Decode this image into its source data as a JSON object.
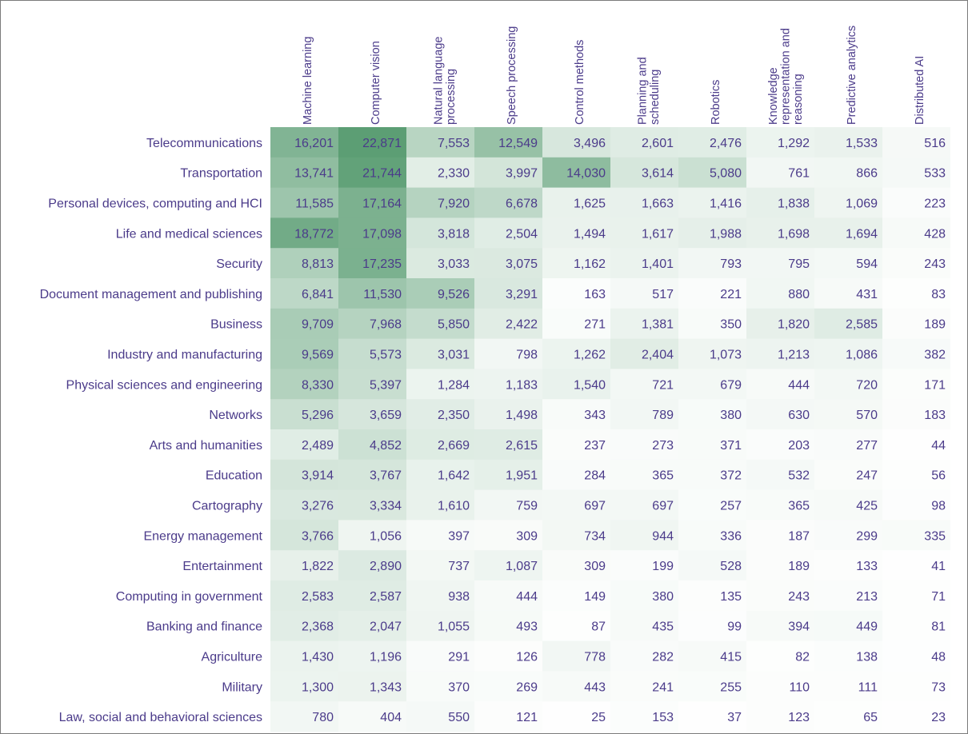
{
  "chart_data": {
    "type": "heatmap",
    "title": "",
    "xlabel": "",
    "ylabel": "",
    "columns": [
      [
        "Machine learning"
      ],
      [
        "Computer vision"
      ],
      [
        "Natural language",
        "processing"
      ],
      [
        "Speech processing"
      ],
      [
        "Control methods"
      ],
      [
        "Planning and",
        "scheduling"
      ],
      [
        "Robotics"
      ],
      [
        "Knowledge",
        "representation and",
        "reasoning"
      ],
      [
        "Predictive analytics"
      ],
      [
        "Distributed AI"
      ]
    ],
    "rows": [
      "Telecommunications",
      "Transportation",
      "Personal devices, computing and HCI",
      "Life and medical sciences",
      "Security",
      "Document management and publishing",
      "Business",
      "Industry and manufacturing",
      "Physical sciences and engineering",
      "Networks",
      "Arts and humanities",
      "Education",
      "Cartography",
      "Energy management",
      "Entertainment",
      "Computing in government",
      "Banking and finance",
      "Agriculture",
      "Military",
      "Law, social and behavioral sciences"
    ],
    "values": [
      [
        16201,
        22871,
        7553,
        12549,
        3496,
        2601,
        2476,
        1292,
        1533,
        516
      ],
      [
        13741,
        21744,
        2330,
        3997,
        14030,
        3614,
        5080,
        761,
        866,
        533
      ],
      [
        11585,
        17164,
        7920,
        6678,
        1625,
        1663,
        1416,
        1838,
        1069,
        223
      ],
      [
        18772,
        17098,
        3818,
        2504,
        1494,
        1617,
        1988,
        1698,
        1694,
        428
      ],
      [
        8813,
        17235,
        3033,
        3075,
        1162,
        1401,
        793,
        795,
        594,
        243
      ],
      [
        6841,
        11530,
        9526,
        3291,
        163,
        517,
        221,
        880,
        431,
        83
      ],
      [
        9709,
        7968,
        5850,
        2422,
        271,
        1381,
        350,
        1820,
        2585,
        189
      ],
      [
        9569,
        5573,
        3031,
        798,
        1262,
        2404,
        1073,
        1213,
        1086,
        382
      ],
      [
        8330,
        5397,
        1284,
        1183,
        1540,
        721,
        679,
        444,
        720,
        171
      ],
      [
        5296,
        3659,
        2350,
        1498,
        343,
        789,
        380,
        630,
        570,
        183
      ],
      [
        2489,
        4852,
        2669,
        2615,
        237,
        273,
        371,
        203,
        277,
        44
      ],
      [
        3914,
        3767,
        1642,
        1951,
        284,
        365,
        372,
        532,
        247,
        56
      ],
      [
        3276,
        3334,
        1610,
        759,
        697,
        697,
        257,
        365,
        425,
        98
      ],
      [
        3766,
        1056,
        397,
        309,
        734,
        944,
        336,
        187,
        299,
        335
      ],
      [
        1822,
        2890,
        737,
        1087,
        309,
        199,
        528,
        189,
        133,
        41
      ],
      [
        2583,
        2587,
        938,
        444,
        149,
        380,
        135,
        243,
        213,
        71
      ],
      [
        2368,
        2047,
        1055,
        493,
        87,
        435,
        99,
        394,
        449,
        81
      ],
      [
        1430,
        1196,
        291,
        126,
        778,
        282,
        415,
        82,
        138,
        48
      ],
      [
        1300,
        1343,
        370,
        269,
        443,
        241,
        255,
        110,
        111,
        73
      ],
      [
        780,
        404,
        550,
        121,
        25,
        153,
        37,
        123,
        65,
        23
      ]
    ],
    "color_scale": {
      "low": "#ffffff",
      "high": "#5c9e74",
      "text": "#4b3b8a",
      "max_value": 22871
    }
  }
}
